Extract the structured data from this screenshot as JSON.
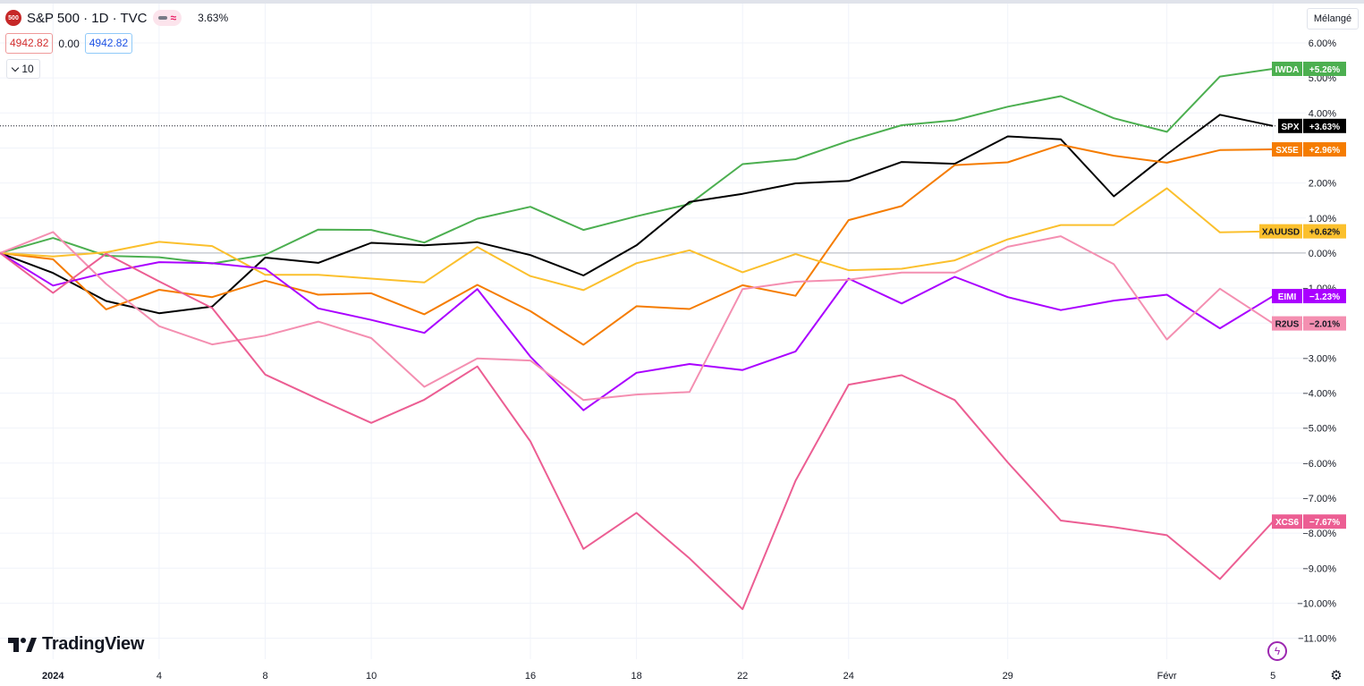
{
  "header": {
    "logo_text": "500",
    "title": "S&P 500 · 1D · TVC",
    "change_pct": "3.63%",
    "price_left": "4942.82",
    "price_mid": "0.00",
    "price_right": "4942.82",
    "legend_count": "10",
    "mode_label": "Mélangé",
    "brand": "TradingView"
  },
  "chart_data": {
    "type": "line",
    "x_tick_labels": [
      {
        "idx": 1,
        "label": "2024",
        "bold": true
      },
      {
        "idx": 3,
        "label": "4"
      },
      {
        "idx": 5,
        "label": "8"
      },
      {
        "idx": 7,
        "label": "10"
      },
      {
        "idx": 10,
        "label": "16"
      },
      {
        "idx": 12,
        "label": "18"
      },
      {
        "idx": 14,
        "label": "22"
      },
      {
        "idx": 16,
        "label": "24"
      },
      {
        "idx": 19,
        "label": "29"
      },
      {
        "idx": 22,
        "label": "Févr"
      },
      {
        "idx": 24,
        "label": "5"
      }
    ],
    "y_ticks": [
      6,
      5,
      4,
      3,
      2,
      1,
      0,
      -1,
      -2,
      -3,
      -4,
      -5,
      -6,
      -7,
      -8,
      -9,
      -10,
      -11
    ],
    "y_tick_labels": [
      "6.00%",
      "5.00%",
      "4.00%",
      "3.00%",
      "2.00%",
      "1.00%",
      "0.00%",
      "−1.00%",
      "−2.00%",
      "−3.00%",
      "−4.00%",
      "−5.00%",
      "−6.00%",
      "−7.00%",
      "−8.00%",
      "−9.00%",
      "−10.00%",
      "−11.00%"
    ],
    "ylim": [
      -11.4,
      6.6
    ],
    "zero_line": 0,
    "series": [
      {
        "name": "IWDA",
        "label": "+5.26%",
        "color": "#4caf50",
        "label_text_color": "#ffffff",
        "values": [
          0,
          0.43,
          -0.08,
          -0.12,
          -0.3,
          -0.05,
          0.67,
          0.66,
          0.3,
          0.98,
          1.32,
          0.66,
          1.05,
          1.4,
          2.54,
          2.68,
          3.2,
          3.65,
          3.79,
          4.18,
          4.48,
          3.85,
          3.46,
          5.04,
          5.26
        ]
      },
      {
        "name": "SPX",
        "label": "+3.63%",
        "color": "#000000",
        "label_text_color": "#ffffff",
        "values": [
          0,
          -0.57,
          -1.37,
          -1.72,
          -1.53,
          -0.13,
          -0.28,
          0.29,
          0.22,
          0.31,
          -0.06,
          -0.64,
          0.22,
          1.46,
          1.69,
          1.99,
          2.06,
          2.6,
          2.55,
          3.33,
          3.25,
          1.62,
          2.82,
          3.95,
          3.63
        ]
      },
      {
        "name": "SX5E",
        "label": "+2.96%",
        "color": "#f57c00",
        "label_text_color": "#ffffff",
        "values": [
          0,
          -0.18,
          -1.61,
          -1.05,
          -1.26,
          -0.79,
          -1.19,
          -1.15,
          -1.75,
          -0.91,
          -1.66,
          -2.62,
          -1.52,
          -1.6,
          -0.92,
          -1.22,
          0.94,
          1.34,
          2.51,
          2.59,
          3.09,
          2.78,
          2.58,
          2.94,
          2.96
        ]
      },
      {
        "name": "XAUUSD",
        "label": "+0.62%",
        "color": "#fbc02d",
        "label_text_color": "#131722",
        "values": [
          0,
          -0.1,
          0.02,
          0.32,
          0.2,
          -0.62,
          -0.62,
          -0.73,
          -0.84,
          0.17,
          -0.66,
          -1.06,
          -0.29,
          0.08,
          -0.55,
          -0.03,
          -0.49,
          -0.45,
          -0.21,
          0.39,
          0.8,
          0.8,
          1.85,
          0.59,
          0.62
        ]
      },
      {
        "name": "EIMI",
        "label": "−1.23%",
        "color": "#aa00ff",
        "label_text_color": "#ffffff",
        "values": [
          0,
          -0.93,
          -0.56,
          -0.26,
          -0.29,
          -0.45,
          -1.58,
          -1.91,
          -2.28,
          -1.03,
          -2.96,
          -4.49,
          -3.42,
          -3.17,
          -3.34,
          -2.81,
          -0.73,
          -1.44,
          -0.68,
          -1.26,
          -1.63,
          -1.36,
          -1.19,
          -2.15,
          -1.23
        ]
      },
      {
        "name": "R2US",
        "label": "−2.01%",
        "color": "#f48fb1",
        "label_text_color": "#131722",
        "values": [
          0,
          0.6,
          -0.88,
          -2.09,
          -2.61,
          -2.36,
          -1.96,
          -2.43,
          -3.82,
          -3.01,
          -3.07,
          -4.2,
          -4.04,
          -3.97,
          -1.03,
          -0.82,
          -0.76,
          -0.56,
          -0.56,
          0.18,
          0.48,
          -0.32,
          -2.47,
          -1.02,
          -2.01
        ]
      },
      {
        "name": "XCS6",
        "label": "−7.67%",
        "color": "#ec5e93",
        "label_text_color": "#ffffff",
        "values": [
          0,
          -1.14,
          -0.02,
          -0.81,
          -1.57,
          -3.47,
          -4.17,
          -4.85,
          -4.19,
          -3.24,
          -5.38,
          -8.45,
          -7.42,
          -8.72,
          -10.17,
          -6.5,
          -3.76,
          -3.49,
          -4.2,
          -5.98,
          -7.64,
          -7.83,
          -8.06,
          -9.31,
          -7.67
        ]
      }
    ],
    "grid": true
  }
}
